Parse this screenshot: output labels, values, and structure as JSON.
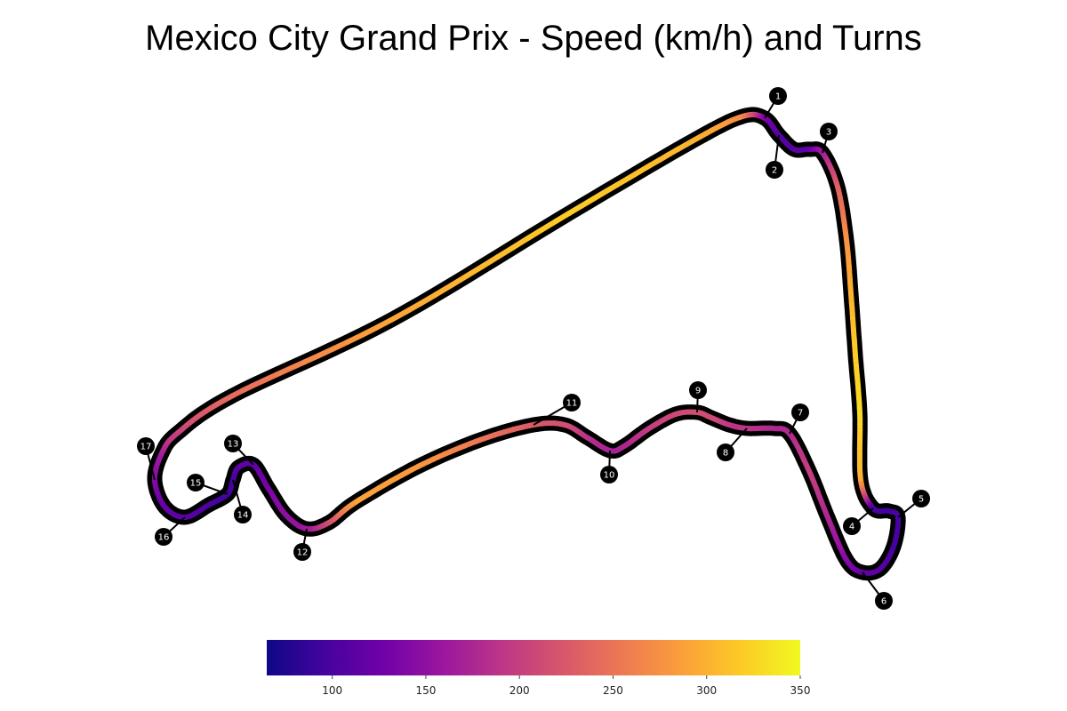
{
  "chart_data": {
    "type": "track_map",
    "title": "Mexico City Grand Prix - Speed (km/h) and Turns",
    "colormap": "plasma",
    "colormap_stops": [
      "#0d0887",
      "#46039f",
      "#7201a8",
      "#9c179e",
      "#bd3786",
      "#d8576b",
      "#ed7953",
      "#fb9f3a",
      "#fdca26",
      "#f0f921"
    ],
    "speed_range": [
      65,
      350
    ],
    "colorbar_ticks": [
      100,
      150,
      200,
      250,
      300,
      350
    ],
    "track_samples": [
      {
        "turn": null,
        "speed": 300
      },
      {
        "turn": "1",
        "speed": 140
      },
      {
        "turn": "2",
        "speed": 110
      },
      {
        "turn": "3",
        "speed": 115
      },
      {
        "turn": null,
        "speed": 230
      },
      {
        "turn": null,
        "speed": 300
      },
      {
        "turn": null,
        "speed": 330
      },
      {
        "turn": "4",
        "speed": 100
      },
      {
        "turn": "5",
        "speed": 95
      },
      {
        "turn": "6",
        "speed": 115
      },
      {
        "turn": null,
        "speed": 210
      },
      {
        "turn": "7",
        "speed": 175
      },
      {
        "turn": "8",
        "speed": 190
      },
      {
        "turn": "9",
        "speed": 215
      },
      {
        "turn": "10",
        "speed": 170
      },
      {
        "turn": "11",
        "speed": 225
      },
      {
        "turn": null,
        "speed": 290
      },
      {
        "turn": "12",
        "speed": 165
      },
      {
        "turn": "13",
        "speed": 115
      },
      {
        "turn": "14",
        "speed": 95
      },
      {
        "turn": "15",
        "speed": 110
      },
      {
        "turn": "16",
        "speed": 120
      },
      {
        "turn": "17",
        "speed": 165
      },
      {
        "turn": null,
        "speed": 240
      },
      {
        "turn": null,
        "speed": 320
      }
    ],
    "turns": [
      "1",
      "2",
      "3",
      "4",
      "5",
      "6",
      "7",
      "8",
      "9",
      "10",
      "11",
      "12",
      "13",
      "14",
      "15",
      "16",
      "17"
    ]
  }
}
